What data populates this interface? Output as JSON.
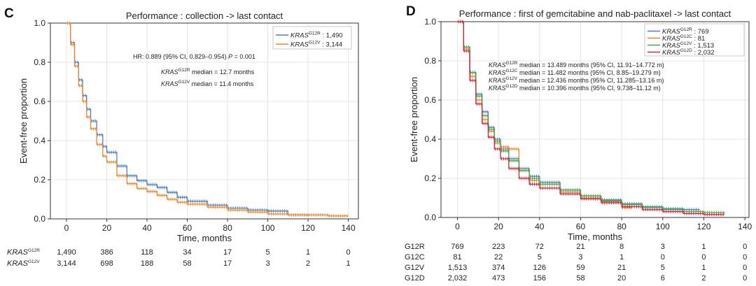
{
  "chart_data": [
    {
      "panel": "C",
      "type": "line",
      "title": "Performance : collection -> last contact",
      "xlabel": "Time, months",
      "ylabel": "Event-free proportion",
      "xlim": [
        -8,
        145
      ],
      "ylim": [
        0,
        1.0
      ],
      "xticks": [
        0,
        20,
        40,
        60,
        80,
        100,
        120,
        140
      ],
      "yticks": [
        0.0,
        0.2,
        0.4,
        0.6,
        0.8,
        1.0
      ],
      "grid": true,
      "legend_position": "top-right",
      "legend": [
        {
          "gene": "KRAS",
          "variant": "G12R",
          "n": ": 1,490",
          "color": "#4f7fbf"
        },
        {
          "gene": "KRAS",
          "variant": "G12V",
          "n": ": 3,144",
          "color": "#e8892e"
        }
      ],
      "annotations": {
        "hr": "HR: 0.889 (95% CI, 0.829–0.954)",
        "p_label": "P",
        "p_value": "= 0.001",
        "medians": [
          {
            "gene": "KRAS",
            "variant": "G12R",
            "text": "median = 12.7 months"
          },
          {
            "gene": "KRAS",
            "variant": "G12V",
            "text": "median = 11.4 months"
          }
        ]
      },
      "series": [
        {
          "name": "KRAS G12R",
          "color": "#4f7fbf",
          "x": [
            0,
            2,
            4,
            6,
            8,
            10,
            12,
            15,
            18,
            20,
            25,
            30,
            35,
            40,
            45,
            50,
            55,
            60,
            70,
            80,
            90,
            100,
            110,
            120
          ],
          "y": [
            1.0,
            0.9,
            0.8,
            0.71,
            0.63,
            0.56,
            0.5,
            0.43,
            0.37,
            0.34,
            0.27,
            0.22,
            0.195,
            0.175,
            0.16,
            0.135,
            0.11,
            0.09,
            0.07,
            0.055,
            0.045,
            0.04,
            0.02,
            0.015
          ]
        },
        {
          "name": "KRAS G12V",
          "color": "#e8892e",
          "x": [
            0,
            2,
            4,
            6,
            8,
            10,
            12,
            15,
            18,
            20,
            25,
            30,
            35,
            40,
            45,
            50,
            55,
            60,
            70,
            80,
            90,
            100,
            110,
            120,
            130,
            140
          ],
          "y": [
            1.0,
            0.89,
            0.78,
            0.68,
            0.6,
            0.52,
            0.46,
            0.38,
            0.32,
            0.29,
            0.22,
            0.18,
            0.155,
            0.14,
            0.12,
            0.1,
            0.085,
            0.075,
            0.06,
            0.045,
            0.035,
            0.025,
            0.02,
            0.02,
            0.015,
            0.015
          ]
        }
      ],
      "risk_table": {
        "x": [
          0,
          20,
          40,
          60,
          80,
          100,
          120,
          140
        ],
        "rows": [
          {
            "gene": "KRAS",
            "variant": "G12R",
            "values": [
              "1,490",
              "386",
              "118",
              "34",
              "17",
              "5",
              "1",
              "0"
            ]
          },
          {
            "gene": "KRAS",
            "variant": "G12V",
            "values": [
              "3,144",
              "698",
              "188",
              "58",
              "17",
              "3",
              "2",
              "1"
            ]
          }
        ]
      }
    },
    {
      "panel": "D",
      "type": "line",
      "title": "Performance : first of gemcitabine and nab-paclitaxel -> last contact",
      "xlabel": "Time, months",
      "ylabel": "Event-free proportion",
      "xlim": [
        -8,
        142
      ],
      "ylim": [
        0,
        1.0
      ],
      "xticks": [
        0,
        20,
        40,
        60,
        80,
        100,
        120,
        140
      ],
      "yticks": [
        0.0,
        0.2,
        0.4,
        0.6,
        0.8,
        1.0
      ],
      "grid": true,
      "legend_position": "top-right",
      "legend": [
        {
          "gene": "KRAS",
          "variant": "G12R",
          "n": ": 769",
          "color": "#4f7fbf"
        },
        {
          "gene": "KRAS",
          "variant": "G12C",
          "n": ": 81",
          "color": "#e8892e"
        },
        {
          "gene": "KRAS",
          "variant": "G12V",
          "n": ": 1,513",
          "color": "#4aa84a"
        },
        {
          "gene": "KRAS",
          "variant": "G12D",
          "n": ": 2,032",
          "color": "#c8283c"
        }
      ],
      "annotations": {
        "medians": [
          {
            "gene": "KRAS",
            "variant": "G12R",
            "text": "median = 13.489 months (95% CI, 11.91–14.772 m)"
          },
          {
            "gene": "KRAS",
            "variant": "G12C",
            "text": "median = 11.482 months (95% CI, 8.85–19.279 m)"
          },
          {
            "gene": "KRAS",
            "variant": "G12V",
            "text": "median = 12.436 months (95% CI, 11.285–13.16 m)"
          },
          {
            "gene": "KRAS",
            "variant": "G12D",
            "text": "median = 10.396 months (95% CI, 9.738–11.12 m)"
          }
        ]
      },
      "series": [
        {
          "name": "KRAS G12R",
          "color": "#4f7fbf",
          "x": [
            0,
            3,
            6,
            9,
            12,
            15,
            18,
            21,
            25,
            30,
            35,
            40,
            50,
            60,
            70,
            80,
            90,
            100,
            110,
            118
          ],
          "y": [
            1.0,
            0.87,
            0.74,
            0.63,
            0.54,
            0.46,
            0.4,
            0.35,
            0.3,
            0.25,
            0.21,
            0.18,
            0.14,
            0.11,
            0.09,
            0.07,
            0.055,
            0.045,
            0.04,
            0.04
          ]
        },
        {
          "name": "KRAS G12C",
          "color": "#e8892e",
          "x": [
            0,
            3,
            6,
            9,
            12,
            15,
            18,
            21,
            25,
            30,
            35,
            40,
            50,
            60,
            70,
            80,
            85
          ],
          "y": [
            1.0,
            0.86,
            0.72,
            0.6,
            0.5,
            0.44,
            0.38,
            0.36,
            0.35,
            0.24,
            0.19,
            0.17,
            0.13,
            0.1,
            0.08,
            0.05,
            0.05
          ]
        },
        {
          "name": "KRAS G12V",
          "color": "#4aa84a",
          "x": [
            0,
            3,
            6,
            9,
            12,
            15,
            18,
            21,
            25,
            30,
            35,
            40,
            50,
            60,
            70,
            80,
            90,
            100,
            110,
            120,
            130
          ],
          "y": [
            1.0,
            0.87,
            0.74,
            0.62,
            0.52,
            0.45,
            0.39,
            0.34,
            0.29,
            0.24,
            0.2,
            0.17,
            0.14,
            0.11,
            0.085,
            0.065,
            0.05,
            0.04,
            0.03,
            0.025,
            0.02
          ]
        },
        {
          "name": "KRAS G12D",
          "color": "#c8283c",
          "x": [
            0,
            3,
            6,
            9,
            12,
            15,
            18,
            21,
            25,
            30,
            35,
            40,
            50,
            60,
            70,
            80,
            90,
            100,
            110,
            120,
            130
          ],
          "y": [
            1.0,
            0.85,
            0.7,
            0.58,
            0.48,
            0.41,
            0.35,
            0.3,
            0.25,
            0.2,
            0.17,
            0.15,
            0.12,
            0.095,
            0.075,
            0.055,
            0.04,
            0.03,
            0.02,
            0.015,
            0.015
          ]
        }
      ],
      "risk_table": {
        "x": [
          0,
          20,
          40,
          60,
          80,
          100,
          120,
          140
        ],
        "rows": [
          {
            "label": "G12R",
            "values": [
              "769",
              "223",
              "72",
              "21",
              "8",
              "3",
              "1",
              "0"
            ]
          },
          {
            "label": "G12C",
            "values": [
              "81",
              "22",
              "5",
              "3",
              "1",
              "0",
              "0",
              "0"
            ]
          },
          {
            "label": "G12V",
            "values": [
              "1,513",
              "374",
              "126",
              "59",
              "21",
              "5",
              "1",
              "0"
            ]
          },
          {
            "label": "G12D",
            "values": [
              "2,032",
              "473",
              "156",
              "58",
              "20",
              "6",
              "2",
              "0"
            ]
          }
        ]
      }
    }
  ]
}
